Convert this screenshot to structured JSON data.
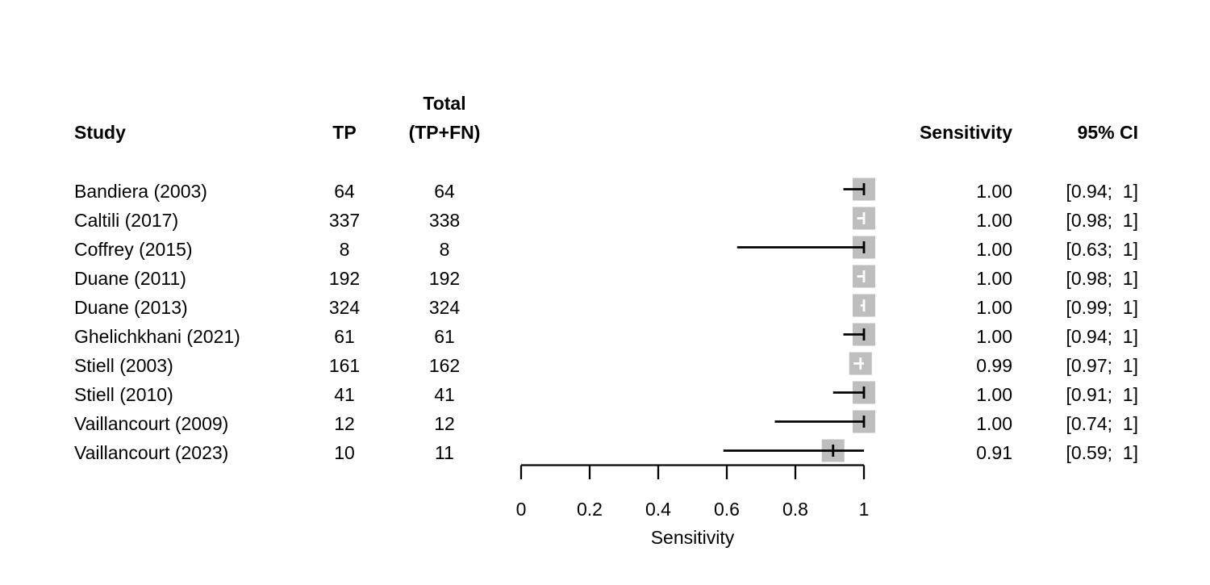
{
  "header": {
    "study": "Study",
    "tp": "TP",
    "total_line1": "Total",
    "total_line2": "(TP+FN)",
    "sensitivity": "Sensitivity",
    "ci": "95% CI"
  },
  "rows": [
    {
      "study": "Bandiera (2003)",
      "tp": "64",
      "total": "64",
      "sensitivity": "1.00",
      "ci": "[0.94;  1]"
    },
    {
      "study": "Caltili (2017)",
      "tp": "337",
      "total": "338",
      "sensitivity": "1.00",
      "ci": "[0.98;  1]"
    },
    {
      "study": "Coffrey (2015)",
      "tp": "8",
      "total": "8",
      "sensitivity": "1.00",
      "ci": "[0.63;  1]"
    },
    {
      "study": "Duane (2011)",
      "tp": "192",
      "total": "192",
      "sensitivity": "1.00",
      "ci": "[0.98;  1]"
    },
    {
      "study": "Duane (2013)",
      "tp": "324",
      "total": "324",
      "sensitivity": "1.00",
      "ci": "[0.99;  1]"
    },
    {
      "study": "Ghelichkhani (2021)",
      "tp": "61",
      "total": "61",
      "sensitivity": "1.00",
      "ci": "[0.94;  1]"
    },
    {
      "study": "Stiell (2003)",
      "tp": "161",
      "total": "162",
      "sensitivity": "0.99",
      "ci": "[0.97;  1]"
    },
    {
      "study": "Stiell (2010)",
      "tp": "41",
      "total": "41",
      "sensitivity": "1.00",
      "ci": "[0.91;  1]"
    },
    {
      "study": "Vaillancourt (2009)",
      "tp": "12",
      "total": "12",
      "sensitivity": "1.00",
      "ci": "[0.74;  1]"
    },
    {
      "study": "Vaillancourt (2023)",
      "tp": "10",
      "total": "11",
      "sensitivity": "0.91",
      "ci": "[0.59;  1]"
    }
  ],
  "chart_data": {
    "type": "forest",
    "xlabel": "Sensitivity",
    "xlim": [
      0,
      1
    ],
    "xticks": [
      0,
      0.2,
      0.4,
      0.6,
      0.8,
      1
    ],
    "xtick_labels": [
      "0",
      "0.2",
      "0.4",
      "0.6",
      "0.8",
      "1"
    ],
    "grid": false,
    "square_size": 28,
    "colors": {
      "square": "#bebebe",
      "ci_line": "#000000",
      "ci_line_inside_square": "#ffffff",
      "axis": "#000000"
    },
    "studies": [
      {
        "name": "Bandiera (2003)",
        "tp": 64,
        "total": 64,
        "estimate": 1.0,
        "lower": 0.94,
        "upper": 1.0
      },
      {
        "name": "Caltili (2017)",
        "tp": 337,
        "total": 338,
        "estimate": 1.0,
        "lower": 0.98,
        "upper": 1.0
      },
      {
        "name": "Coffrey (2015)",
        "tp": 8,
        "total": 8,
        "estimate": 1.0,
        "lower": 0.63,
        "upper": 1.0
      },
      {
        "name": "Duane (2011)",
        "tp": 192,
        "total": 192,
        "estimate": 1.0,
        "lower": 0.98,
        "upper": 1.0
      },
      {
        "name": "Duane (2013)",
        "tp": 324,
        "total": 324,
        "estimate": 1.0,
        "lower": 0.99,
        "upper": 1.0
      },
      {
        "name": "Ghelichkhani (2021)",
        "tp": 61,
        "total": 61,
        "estimate": 1.0,
        "lower": 0.94,
        "upper": 1.0
      },
      {
        "name": "Stiell (2003)",
        "tp": 161,
        "total": 162,
        "estimate": 0.99,
        "lower": 0.97,
        "upper": 1.0
      },
      {
        "name": "Stiell (2010)",
        "tp": 41,
        "total": 41,
        "estimate": 1.0,
        "lower": 0.91,
        "upper": 1.0
      },
      {
        "name": "Vaillancourt (2009)",
        "tp": 12,
        "total": 12,
        "estimate": 1.0,
        "lower": 0.74,
        "upper": 1.0
      },
      {
        "name": "Vaillancourt (2023)",
        "tp": 10,
        "total": 11,
        "estimate": 0.91,
        "lower": 0.59,
        "upper": 1.0
      }
    ]
  }
}
